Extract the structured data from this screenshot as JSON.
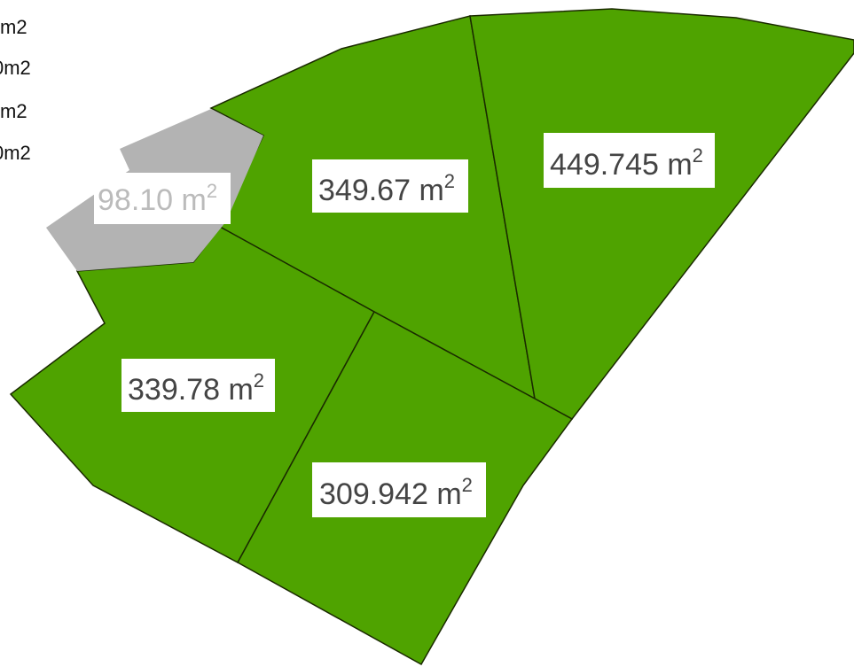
{
  "legend": [
    "m2",
    "0m2",
    "m2",
    "0m2"
  ],
  "parcels": [
    {
      "area": "349.67 m",
      "exponent": "2"
    },
    {
      "area": "449.745 m",
      "exponent": "2"
    },
    {
      "area": "339.78 m",
      "exponent": "2"
    },
    {
      "area": "309.942 m",
      "exponent": "2"
    },
    {
      "area": "98.10 m",
      "exponent": "2"
    }
  ]
}
